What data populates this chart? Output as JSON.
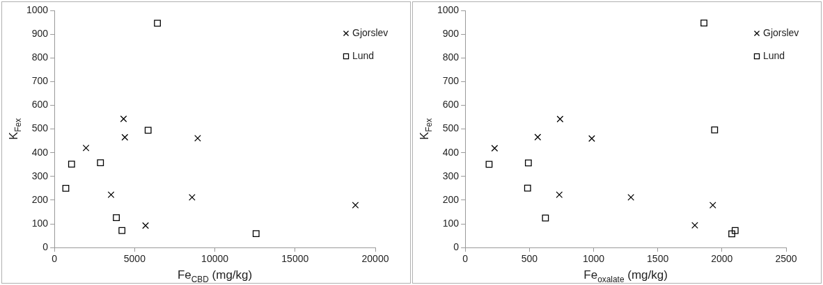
{
  "chart_data": [
    {
      "type": "scatter",
      "xlabel": "Fe$_{CBD}$ (mg/kg)",
      "ylabel": "K$_{Fex}$",
      "xlim": [
        0,
        20000
      ],
      "xticks": [
        0,
        5000,
        10000,
        15000,
        20000
      ],
      "ylim": [
        0,
        1000
      ],
      "yticks": [
        0,
        100,
        200,
        300,
        400,
        500,
        600,
        700,
        800,
        900,
        1000
      ],
      "grid": false,
      "legend": "top right",
      "series": [
        {
          "name": "Gjorslev",
          "color": "#000000",
          "marker": "cross",
          "x": [
            1970,
            4310,
            4390,
            8930,
            3530,
            8580,
            5680,
            18760
          ],
          "values": [
            420,
            543,
            465,
            461,
            223,
            212,
            93,
            179
          ]
        },
        {
          "name": "Lund",
          "color": "#000000",
          "marker": "square",
          "x": [
            6420,
            5840,
            1070,
            2870,
            710,
            3860,
            4210,
            12570
          ],
          "values": [
            946,
            495,
            352,
            358,
            250,
            126,
            72,
            59
          ]
        }
      ]
    },
    {
      "type": "scatter",
      "xlabel": "Fe$_{oxalate}$ (mg/kg)",
      "ylabel": "K$_{Fex}$",
      "xlim": [
        0,
        2500
      ],
      "xticks": [
        0,
        500,
        1000,
        1500,
        2000,
        2500
      ],
      "ylim": [
        0,
        1000
      ],
      "yticks": [
        0,
        100,
        200,
        300,
        400,
        500,
        600,
        700,
        800,
        900,
        1000
      ],
      "grid": false,
      "legend": "top right",
      "series": [
        {
          "name": "Gjorslev",
          "color": "#000000",
          "marker": "cross",
          "x": [
            229,
            739,
            565,
            986,
            733,
            1291,
            1789,
            1929
          ],
          "values": [
            419,
            542,
            466,
            460,
            223,
            212,
            94,
            179
          ]
        },
        {
          "name": "Lund",
          "color": "#000000",
          "marker": "square",
          "x": [
            1860,
            1943,
            186,
            492,
            486,
            625,
            2077,
            2103
          ],
          "values": [
            947,
            496,
            351,
            357,
            251,
            125,
            58,
            72
          ]
        }
      ]
    }
  ]
}
